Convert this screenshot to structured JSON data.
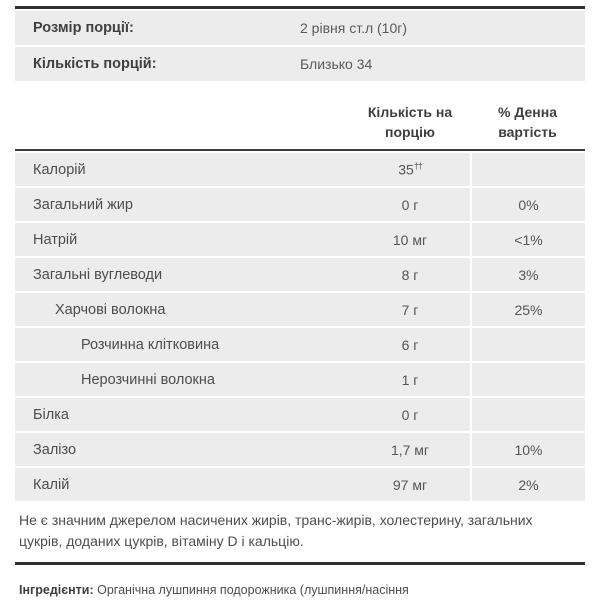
{
  "serving_info": {
    "rows": [
      {
        "label": "Розмір порції:",
        "value": "2 рівня ст.л (10г)"
      },
      {
        "label": "Кількість порцій:",
        "value": "Близько 34"
      }
    ]
  },
  "table": {
    "col_headers": {
      "amount": "Кількість на порцію",
      "dv": "% Денна вартість"
    },
    "rows": [
      {
        "label": "Калорій",
        "amount": "35",
        "amount_sup": "††",
        "dv": ""
      },
      {
        "label": "Загальний жир",
        "amount": "0 г",
        "dv": "0%"
      },
      {
        "label": "Натрій",
        "amount": "10 мг",
        "dv": "<1%"
      },
      {
        "label": "Загальні вуглеводи",
        "amount": "8 г",
        "dv": "3%"
      },
      {
        "label": "Харчові волокна",
        "amount": "7 г",
        "dv": "25%"
      },
      {
        "label": "Розчинна клітковина",
        "amount": "6 г",
        "dv": ""
      },
      {
        "label": "Нерозчинні волокна",
        "amount": "1 г",
        "dv": ""
      },
      {
        "label": "Білка",
        "amount": "0 г",
        "dv": ""
      },
      {
        "label": "Залізо",
        "amount": "1,7 мг",
        "dv": "10%"
      },
      {
        "label": "Калій",
        "amount": "97 мг",
        "dv": "2%"
      }
    ]
  },
  "footnote": "Не є значним джерелом насичених жирів, транс-жирів, холестерину, загальних цукрів, доданих цукрів, вітаміну D і кальцію.",
  "ingredients": {
    "label": "Інгредієнти:",
    "text": " Органічна лушпиння подорожника (лушпиння/насіння"
  },
  "colors": {
    "bar": "#2f2f2f",
    "row_bg": "#ececec",
    "divider": "#ffffff",
    "text": "#4d4d4d"
  }
}
